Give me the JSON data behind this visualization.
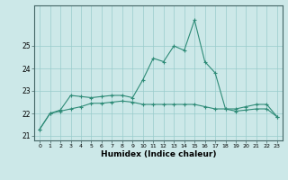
{
  "x": [
    0,
    1,
    2,
    3,
    4,
    5,
    6,
    7,
    8,
    9,
    10,
    11,
    12,
    13,
    14,
    15,
    16,
    17,
    18,
    19,
    20,
    21,
    22,
    23
  ],
  "line1": [
    21.3,
    22.0,
    22.15,
    22.8,
    22.75,
    22.7,
    22.75,
    22.8,
    22.8,
    22.7,
    23.5,
    24.45,
    24.3,
    25.0,
    24.8,
    26.15,
    24.3,
    23.8,
    22.2,
    22.2,
    22.3,
    22.4,
    22.4,
    21.85
  ],
  "line2": [
    21.3,
    22.0,
    22.1,
    22.2,
    22.3,
    22.45,
    22.45,
    22.5,
    22.55,
    22.5,
    22.4,
    22.4,
    22.4,
    22.4,
    22.4,
    22.4,
    22.3,
    22.2,
    22.2,
    22.1,
    22.15,
    22.2,
    22.2,
    21.85
  ],
  "line_color": "#2e8b77",
  "bg_color": "#cce8e8",
  "grid_color": "#99cccc",
  "xlabel": "Humidex (Indice chaleur)",
  "ylim_min": 20.8,
  "ylim_max": 26.8,
  "yticks": [
    21,
    22,
    23,
    24,
    25
  ],
  "xtick_labels": [
    "0",
    "1",
    "2",
    "3",
    "4",
    "5",
    "6",
    "7",
    "8",
    "9",
    "10",
    "11",
    "12",
    "13",
    "14",
    "15",
    "16",
    "17",
    "18",
    "19",
    "20",
    "21",
    "22",
    "23"
  ],
  "marker": "+"
}
